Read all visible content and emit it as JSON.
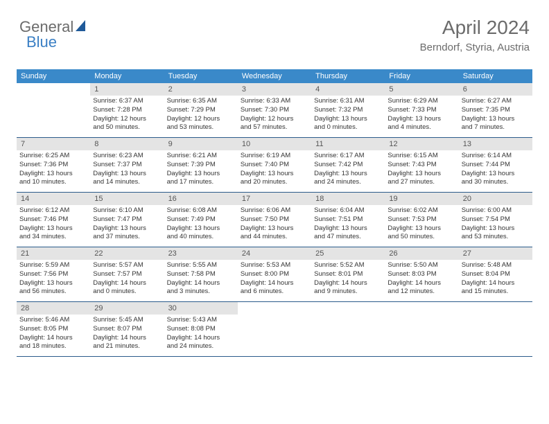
{
  "brand": {
    "word1": "General",
    "word2": "Blue"
  },
  "title": "April 2024",
  "location": "Berndorf, Styria, Austria",
  "colors": {
    "header_bg": "#3a89c9",
    "header_text": "#ffffff",
    "daynum_bg": "#e4e4e4",
    "daynum_text": "#555555",
    "body_text": "#333333",
    "week_border": "#2a5a8a",
    "title_text": "#6b6b6b",
    "brand_grey": "#6b6b6b",
    "brand_blue": "#3a7fc4",
    "logo_shape": "#1f5a99",
    "page_bg": "#ffffff"
  },
  "typography": {
    "title_fontsize": 28,
    "location_fontsize": 15,
    "dayheader_fontsize": 11,
    "daynum_fontsize": 11,
    "body_fontsize": 9.5,
    "brand_fontsize": 22
  },
  "dayNames": [
    "Sunday",
    "Monday",
    "Tuesday",
    "Wednesday",
    "Thursday",
    "Friday",
    "Saturday"
  ],
  "layout": {
    "columns": 7,
    "rows": 5,
    "first_weekday_offset": 1
  },
  "weeks": [
    [
      null,
      {
        "n": "1",
        "sr": "Sunrise: 6:37 AM",
        "ss": "Sunset: 7:28 PM",
        "d1": "Daylight: 12 hours",
        "d2": "and 50 minutes."
      },
      {
        "n": "2",
        "sr": "Sunrise: 6:35 AM",
        "ss": "Sunset: 7:29 PM",
        "d1": "Daylight: 12 hours",
        "d2": "and 53 minutes."
      },
      {
        "n": "3",
        "sr": "Sunrise: 6:33 AM",
        "ss": "Sunset: 7:30 PM",
        "d1": "Daylight: 12 hours",
        "d2": "and 57 minutes."
      },
      {
        "n": "4",
        "sr": "Sunrise: 6:31 AM",
        "ss": "Sunset: 7:32 PM",
        "d1": "Daylight: 13 hours",
        "d2": "and 0 minutes."
      },
      {
        "n": "5",
        "sr": "Sunrise: 6:29 AM",
        "ss": "Sunset: 7:33 PM",
        "d1": "Daylight: 13 hours",
        "d2": "and 4 minutes."
      },
      {
        "n": "6",
        "sr": "Sunrise: 6:27 AM",
        "ss": "Sunset: 7:35 PM",
        "d1": "Daylight: 13 hours",
        "d2": "and 7 minutes."
      }
    ],
    [
      {
        "n": "7",
        "sr": "Sunrise: 6:25 AM",
        "ss": "Sunset: 7:36 PM",
        "d1": "Daylight: 13 hours",
        "d2": "and 10 minutes."
      },
      {
        "n": "8",
        "sr": "Sunrise: 6:23 AM",
        "ss": "Sunset: 7:37 PM",
        "d1": "Daylight: 13 hours",
        "d2": "and 14 minutes."
      },
      {
        "n": "9",
        "sr": "Sunrise: 6:21 AM",
        "ss": "Sunset: 7:39 PM",
        "d1": "Daylight: 13 hours",
        "d2": "and 17 minutes."
      },
      {
        "n": "10",
        "sr": "Sunrise: 6:19 AM",
        "ss": "Sunset: 7:40 PM",
        "d1": "Daylight: 13 hours",
        "d2": "and 20 minutes."
      },
      {
        "n": "11",
        "sr": "Sunrise: 6:17 AM",
        "ss": "Sunset: 7:42 PM",
        "d1": "Daylight: 13 hours",
        "d2": "and 24 minutes."
      },
      {
        "n": "12",
        "sr": "Sunrise: 6:15 AM",
        "ss": "Sunset: 7:43 PM",
        "d1": "Daylight: 13 hours",
        "d2": "and 27 minutes."
      },
      {
        "n": "13",
        "sr": "Sunrise: 6:14 AM",
        "ss": "Sunset: 7:44 PM",
        "d1": "Daylight: 13 hours",
        "d2": "and 30 minutes."
      }
    ],
    [
      {
        "n": "14",
        "sr": "Sunrise: 6:12 AM",
        "ss": "Sunset: 7:46 PM",
        "d1": "Daylight: 13 hours",
        "d2": "and 34 minutes."
      },
      {
        "n": "15",
        "sr": "Sunrise: 6:10 AM",
        "ss": "Sunset: 7:47 PM",
        "d1": "Daylight: 13 hours",
        "d2": "and 37 minutes."
      },
      {
        "n": "16",
        "sr": "Sunrise: 6:08 AM",
        "ss": "Sunset: 7:49 PM",
        "d1": "Daylight: 13 hours",
        "d2": "and 40 minutes."
      },
      {
        "n": "17",
        "sr": "Sunrise: 6:06 AM",
        "ss": "Sunset: 7:50 PM",
        "d1": "Daylight: 13 hours",
        "d2": "and 44 minutes."
      },
      {
        "n": "18",
        "sr": "Sunrise: 6:04 AM",
        "ss": "Sunset: 7:51 PM",
        "d1": "Daylight: 13 hours",
        "d2": "and 47 minutes."
      },
      {
        "n": "19",
        "sr": "Sunrise: 6:02 AM",
        "ss": "Sunset: 7:53 PM",
        "d1": "Daylight: 13 hours",
        "d2": "and 50 minutes."
      },
      {
        "n": "20",
        "sr": "Sunrise: 6:00 AM",
        "ss": "Sunset: 7:54 PM",
        "d1": "Daylight: 13 hours",
        "d2": "and 53 minutes."
      }
    ],
    [
      {
        "n": "21",
        "sr": "Sunrise: 5:59 AM",
        "ss": "Sunset: 7:56 PM",
        "d1": "Daylight: 13 hours",
        "d2": "and 56 minutes."
      },
      {
        "n": "22",
        "sr": "Sunrise: 5:57 AM",
        "ss": "Sunset: 7:57 PM",
        "d1": "Daylight: 14 hours",
        "d2": "and 0 minutes."
      },
      {
        "n": "23",
        "sr": "Sunrise: 5:55 AM",
        "ss": "Sunset: 7:58 PM",
        "d1": "Daylight: 14 hours",
        "d2": "and 3 minutes."
      },
      {
        "n": "24",
        "sr": "Sunrise: 5:53 AM",
        "ss": "Sunset: 8:00 PM",
        "d1": "Daylight: 14 hours",
        "d2": "and 6 minutes."
      },
      {
        "n": "25",
        "sr": "Sunrise: 5:52 AM",
        "ss": "Sunset: 8:01 PM",
        "d1": "Daylight: 14 hours",
        "d2": "and 9 minutes."
      },
      {
        "n": "26",
        "sr": "Sunrise: 5:50 AM",
        "ss": "Sunset: 8:03 PM",
        "d1": "Daylight: 14 hours",
        "d2": "and 12 minutes."
      },
      {
        "n": "27",
        "sr": "Sunrise: 5:48 AM",
        "ss": "Sunset: 8:04 PM",
        "d1": "Daylight: 14 hours",
        "d2": "and 15 minutes."
      }
    ],
    [
      {
        "n": "28",
        "sr": "Sunrise: 5:46 AM",
        "ss": "Sunset: 8:05 PM",
        "d1": "Daylight: 14 hours",
        "d2": "and 18 minutes."
      },
      {
        "n": "29",
        "sr": "Sunrise: 5:45 AM",
        "ss": "Sunset: 8:07 PM",
        "d1": "Daylight: 14 hours",
        "d2": "and 21 minutes."
      },
      {
        "n": "30",
        "sr": "Sunrise: 5:43 AM",
        "ss": "Sunset: 8:08 PM",
        "d1": "Daylight: 14 hours",
        "d2": "and 24 minutes."
      },
      null,
      null,
      null,
      null
    ]
  ]
}
